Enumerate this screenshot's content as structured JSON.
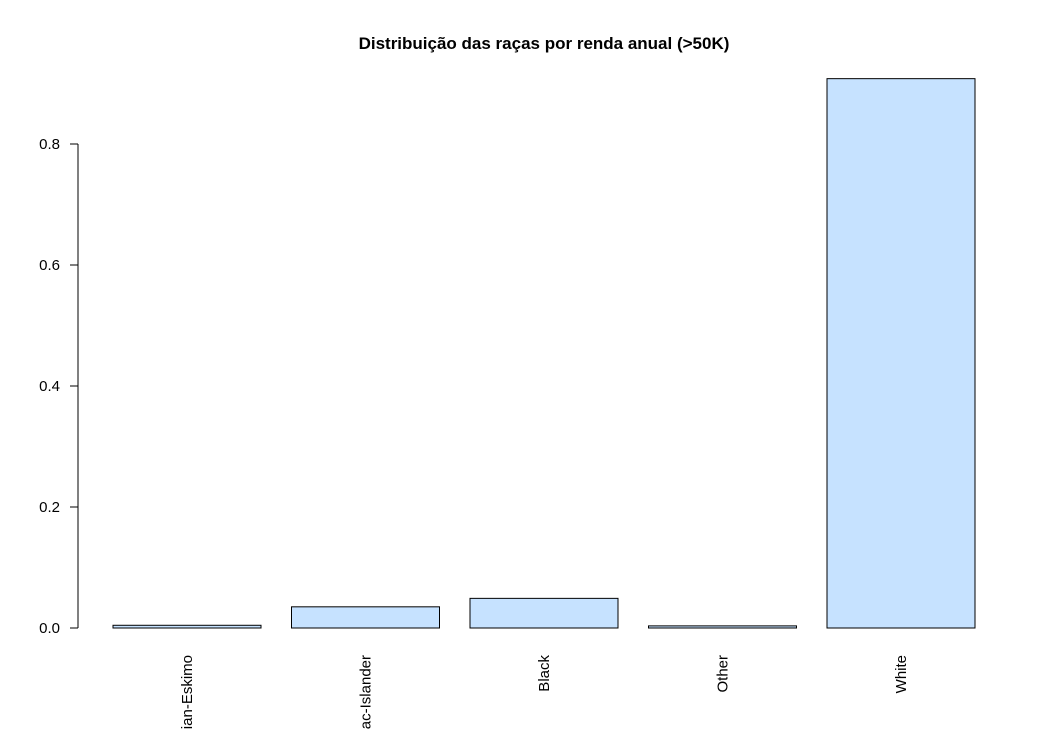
{
  "chart_data": {
    "type": "bar",
    "title": "Distribuição das raças por renda anual (>50K)",
    "xlabel": "",
    "ylabel": "",
    "categories": [
      "Amer-Indian-Eskimo",
      "Asian-Pac-Islander",
      "Black",
      "Other",
      "White"
    ],
    "category_labels_visible": [
      "ian-Eskimo",
      "ac-Islander",
      "Black",
      "Other",
      "White"
    ],
    "values": [
      0.0045,
      0.035,
      0.049,
      0.0035,
      0.908
    ],
    "ylim": [
      0,
      0.9
    ],
    "y_ticks": [
      0.0,
      0.2,
      0.4,
      0.6,
      0.8
    ],
    "y_tick_labels": [
      "0.0",
      "0.2",
      "0.4",
      "0.6",
      "0.8"
    ],
    "grid": false,
    "legend": "none",
    "colors": {
      "bar_fill": "#c6e2ff",
      "bar_stroke": "#000000",
      "axis": "#000000",
      "text": "#000000"
    }
  }
}
